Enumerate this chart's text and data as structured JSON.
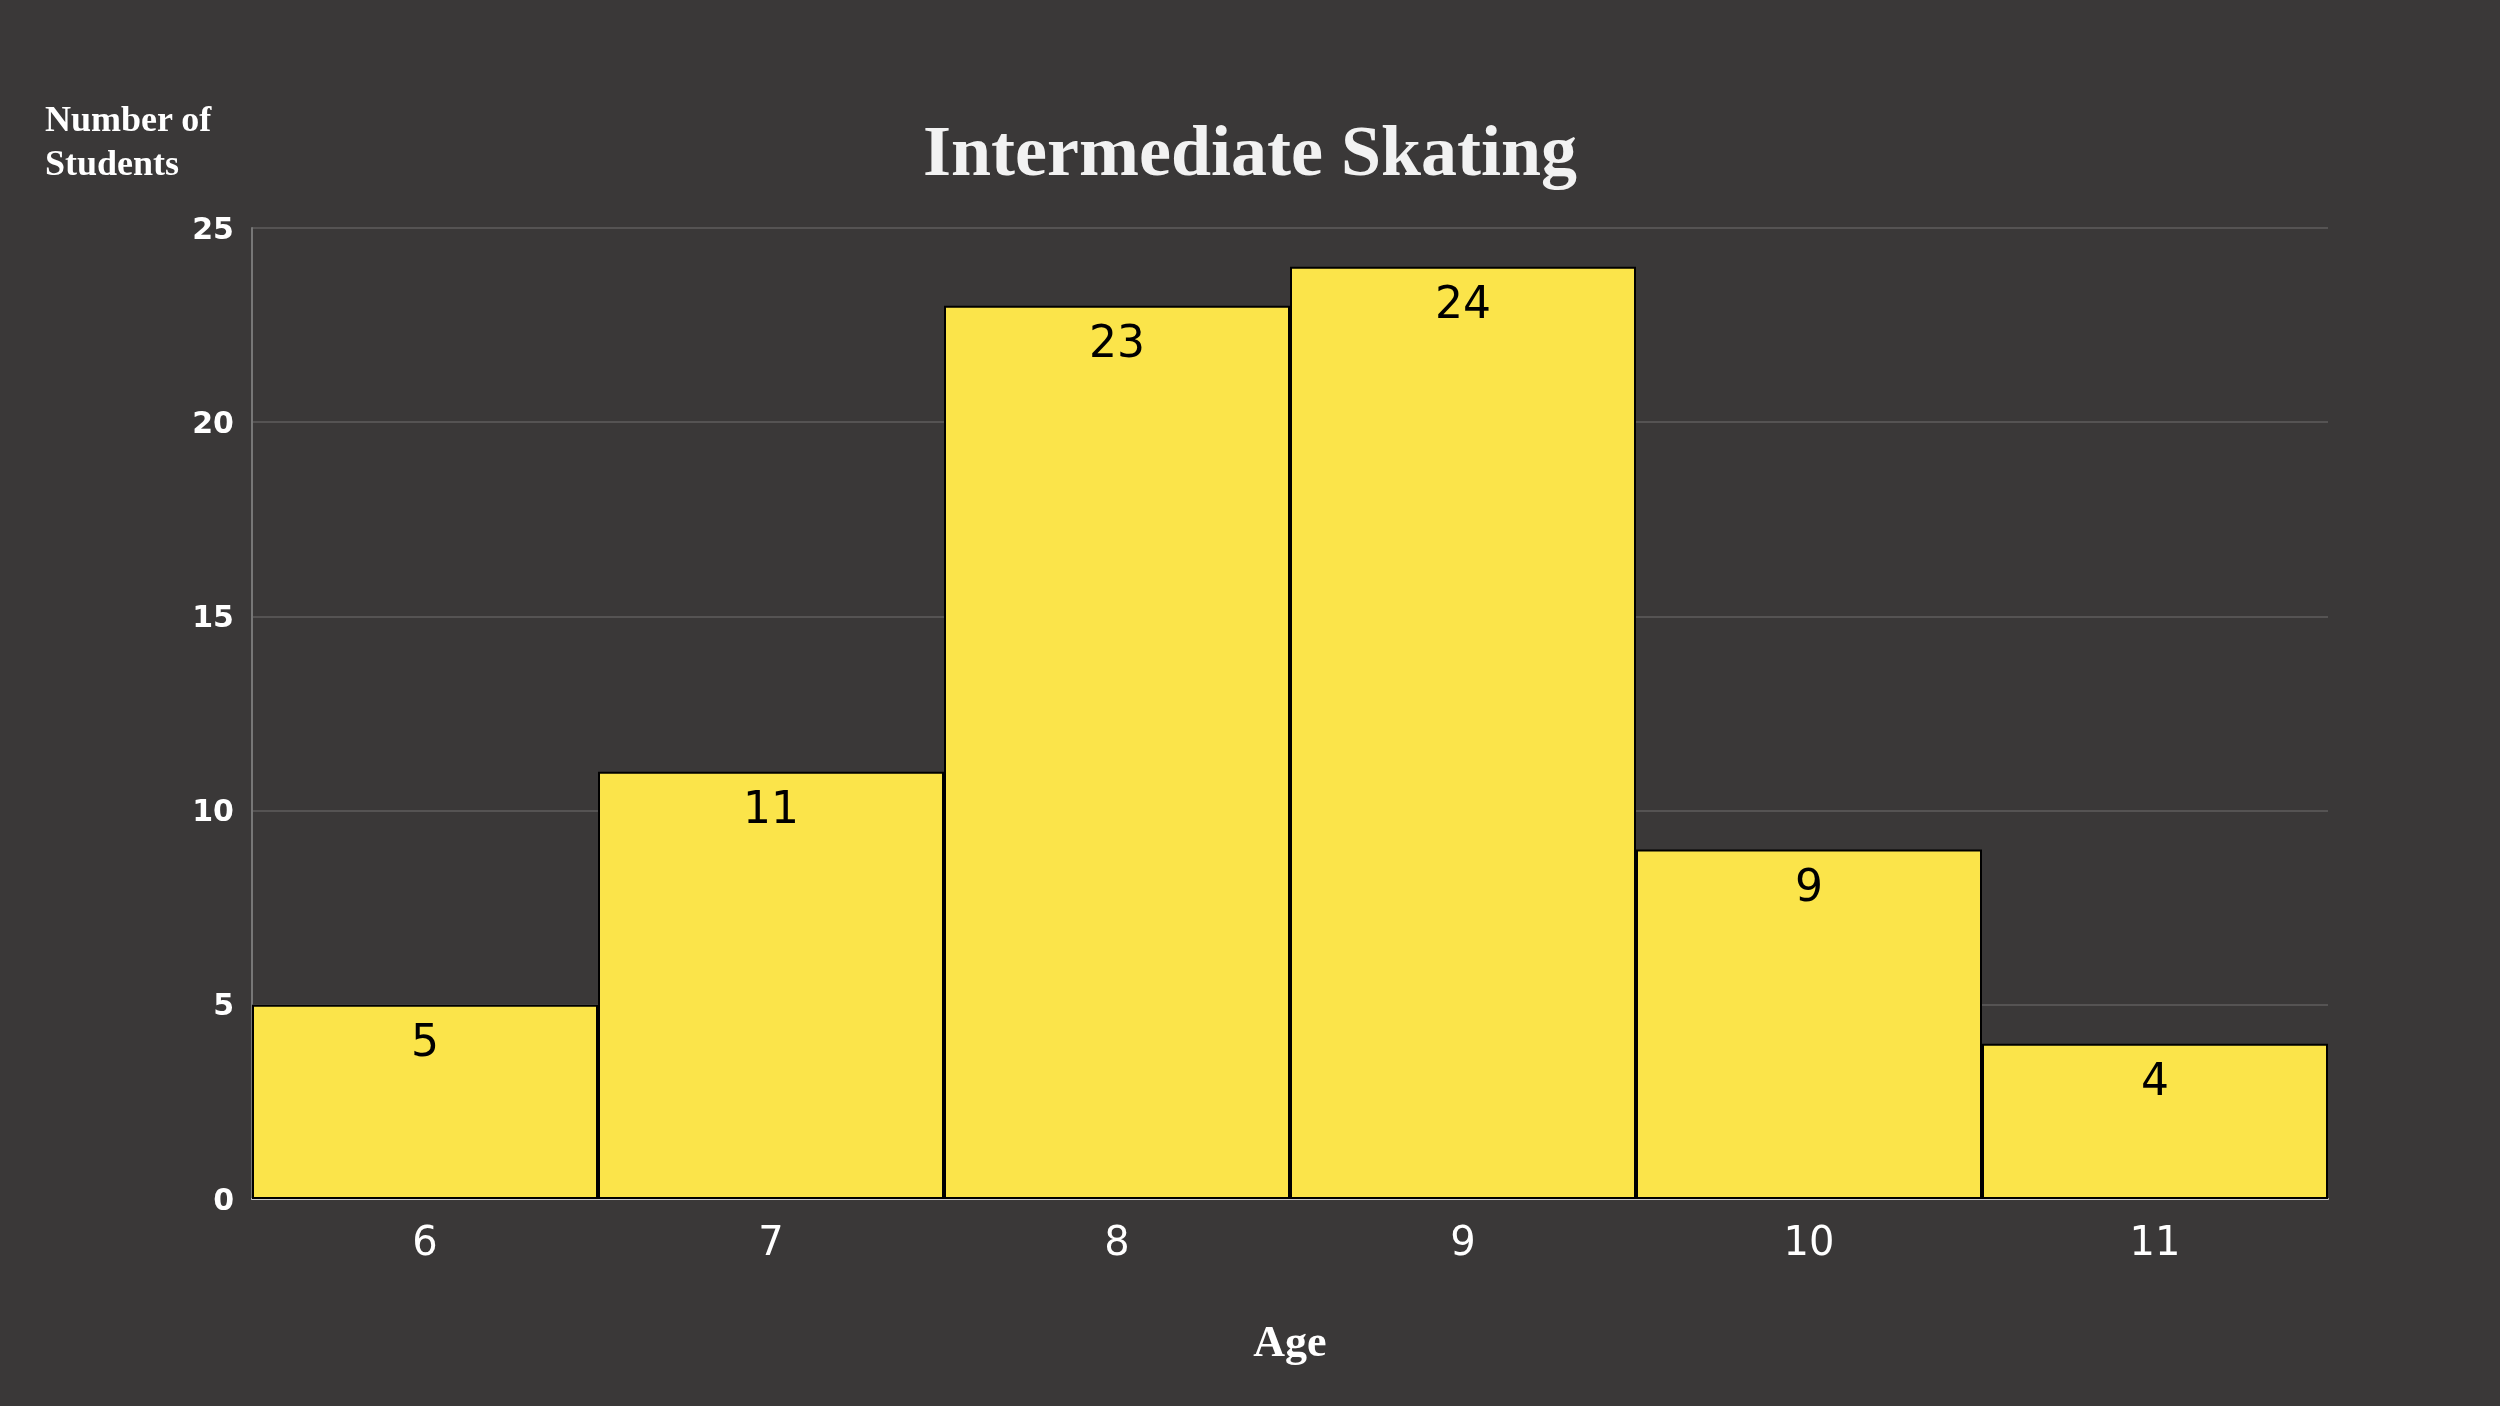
{
  "chart_data": {
    "type": "bar",
    "title": "Intermediate Skating",
    "xlabel": "Age",
    "ylabel": "Number of Students",
    "categories": [
      "6",
      "7",
      "8",
      "9",
      "10",
      "11"
    ],
    "values": [
      5,
      11,
      23,
      24,
      9,
      4
    ],
    "color": "#fbe44a",
    "ylim": [
      0,
      25
    ],
    "yticks": [
      0,
      5,
      10,
      15,
      20,
      25
    ],
    "grid": "y",
    "data_labels": true
  }
}
